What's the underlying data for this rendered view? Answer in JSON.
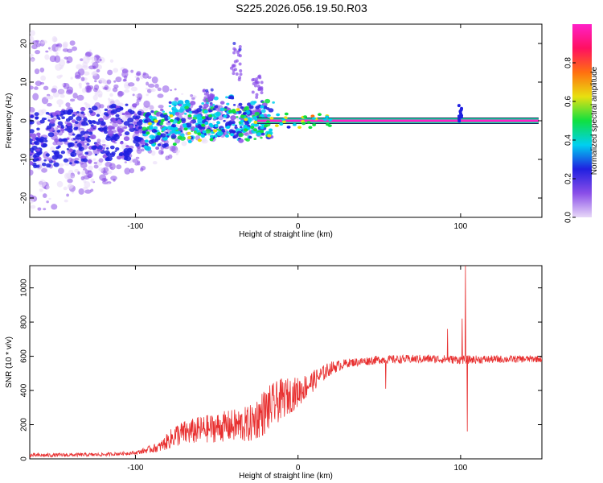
{
  "title": "S225.2026.056.19.50.R03",
  "chart_data": [
    {
      "type": "heatmap",
      "name": "spectrogram",
      "xlabel": "Height of straight line (km)",
      "ylabel": "Frequency (Hz)",
      "xlim": [
        -165,
        150
      ],
      "ylim": [
        -25,
        25
      ],
      "xticks": [
        -100,
        0,
        100
      ],
      "yticks": [
        -20,
        -10,
        0,
        10,
        20
      ],
      "colorbar": {
        "label": "Normalized spectral amplitude",
        "range": [
          0,
          1
        ],
        "ticks": [
          0.0,
          0.2,
          0.4,
          0.6,
          0.8
        ],
        "colormap": [
          "#e8d8f8",
          "#8a4ee8",
          "#2020e0",
          "#00d0f0",
          "#10e040",
          "#e8e010",
          "#ff7010",
          "#ff1060",
          "#ff20c8"
        ]
      },
      "carrier_line": {
        "frequency": 0,
        "x_start": -25,
        "x_end": 148,
        "amplitude": 0.95
      }
    },
    {
      "type": "line",
      "name": "snr",
      "xlabel": "Height of straight line (km)",
      "ylabel": "SNR (10 * v/v)",
      "xlim": [
        -165,
        150
      ],
      "ylim": [
        0,
        1130
      ],
      "xticks": [
        -100,
        0,
        100
      ],
      "yticks": [
        0,
        200,
        400,
        600,
        800,
        1000
      ],
      "color": "#e83030",
      "envelope": [
        {
          "x": -165,
          "mean": 20,
          "noise": 12
        },
        {
          "x": -120,
          "mean": 25,
          "noise": 10
        },
        {
          "x": -100,
          "mean": 35,
          "noise": 10
        },
        {
          "x": -85,
          "mean": 70,
          "noise": 30
        },
        {
          "x": -75,
          "mean": 140,
          "noise": 70
        },
        {
          "x": -60,
          "mean": 170,
          "noise": 80
        },
        {
          "x": -45,
          "mean": 190,
          "noise": 90
        },
        {
          "x": -30,
          "mean": 200,
          "noise": 110
        },
        {
          "x": -20,
          "mean": 280,
          "noise": 140
        },
        {
          "x": -10,
          "mean": 350,
          "noise": 120
        },
        {
          "x": 0,
          "mean": 390,
          "noise": 90
        },
        {
          "x": 10,
          "mean": 460,
          "noise": 60
        },
        {
          "x": 20,
          "mean": 530,
          "noise": 40
        },
        {
          "x": 30,
          "mean": 560,
          "noise": 25
        },
        {
          "x": 50,
          "mean": 580,
          "noise": 25
        },
        {
          "x": 80,
          "mean": 585,
          "noise": 25
        },
        {
          "x": 100,
          "mean": 580,
          "noise": 25
        },
        {
          "x": 150,
          "mean": 585,
          "noise": 20
        }
      ],
      "spikes": [
        {
          "x": 103,
          "y": 1130
        },
        {
          "x": 104,
          "y": 160
        },
        {
          "x": 101,
          "y": 820
        },
        {
          "x": 54,
          "y": 410
        },
        {
          "x": 92,
          "y": 760
        }
      ]
    }
  ]
}
